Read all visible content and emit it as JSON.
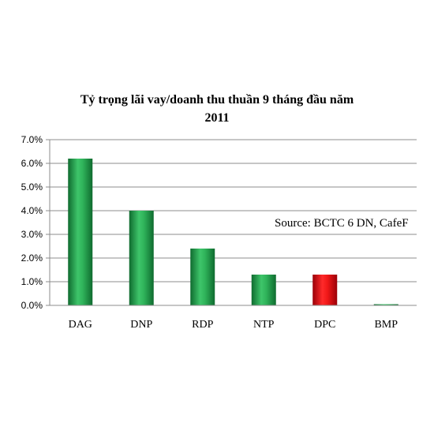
{
  "chart_data": {
    "type": "bar",
    "title_lines": [
      "Tỷ trọng lãi vay/doanh thu thuần 9 tháng đầu năm",
      "2011"
    ],
    "categories": [
      "DAG",
      "DNP",
      "RDP",
      "NTP",
      "DPC",
      "BMP"
    ],
    "values": [
      6.2,
      4.0,
      2.4,
      1.3,
      1.3,
      0.05
    ],
    "highlight_index": 4,
    "ylim": [
      0,
      7
    ],
    "yticks": [
      "0.0%",
      "1.0%",
      "2.0%",
      "3.0%",
      "4.0%",
      "5.0%",
      "6.0%",
      "7.0%"
    ],
    "grid": true,
    "annotation": "Source: BCTC 6 DN, CafeF",
    "colors": {
      "bar": "#1f9a4a",
      "bar_highlight": "#e0101a"
    }
  }
}
